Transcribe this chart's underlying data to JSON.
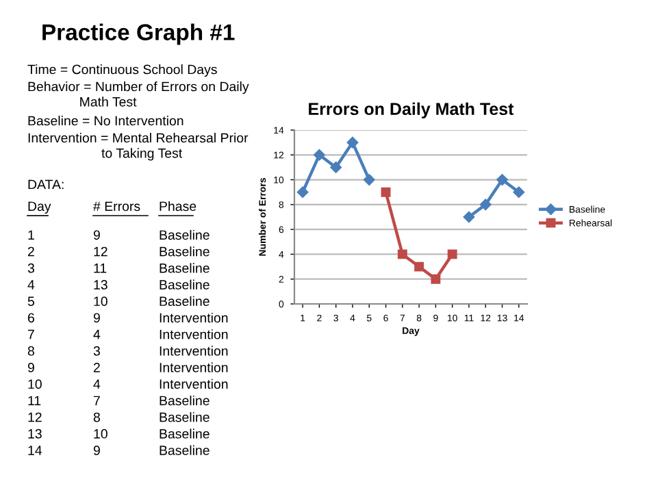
{
  "chart_data": {
    "type": "line",
    "title": "Errors on Daily Math Test",
    "xlabel": "Day",
    "ylabel": "Number of Errors",
    "categories": [
      "1",
      "2",
      "3",
      "4",
      "5",
      "6",
      "7",
      "8",
      "9",
      "10",
      "11",
      "12",
      "13",
      "14"
    ],
    "series": [
      {
        "name": "Baseline",
        "color": "#4a7ebb",
        "marker": "diamond",
        "values": [
          9,
          12,
          11,
          13,
          10,
          null,
          null,
          null,
          null,
          null,
          7,
          8,
          10,
          9
        ]
      },
      {
        "name": "Rehearsal",
        "color": "#be4b48",
        "marker": "square",
        "values": [
          null,
          null,
          null,
          null,
          null,
          9,
          4,
          3,
          2,
          4,
          null,
          null,
          null,
          null
        ]
      }
    ],
    "ylim": [
      0,
      14
    ],
    "yticks": [
      0,
      2,
      4,
      6,
      8,
      10,
      12,
      14
    ],
    "grid": "y",
    "legend": "right",
    "line_style": "solid",
    "annotations": [
      "Practice Graph #1",
      "Time = Continuous School Days",
      "Behavior = Number of Errors on Daily\n              Math Test",
      "Baseline = No Intervention",
      "Intervention = Mental Rehearsal Prior\n                    to Taking Test",
      "DATA:",
      "Day\t# Errors\tPhase",
      "1\t9\tBaseline",
      "2\t12\tBaseline",
      "3\t11\tBaseline",
      "4\t13\tBaseline",
      "5\t10\tBaseline",
      "6\t9\tIntervention",
      "7\t4\tIntervention",
      "8\t3\tIntervention",
      "9\t2\tIntervention",
      "10\t4\tIntervention",
      "11\t7\tBaseline",
      "12\t8\tBaseline",
      "13\t10\tBaseline",
      "14\t9\tBaseline"
    ]
  }
}
